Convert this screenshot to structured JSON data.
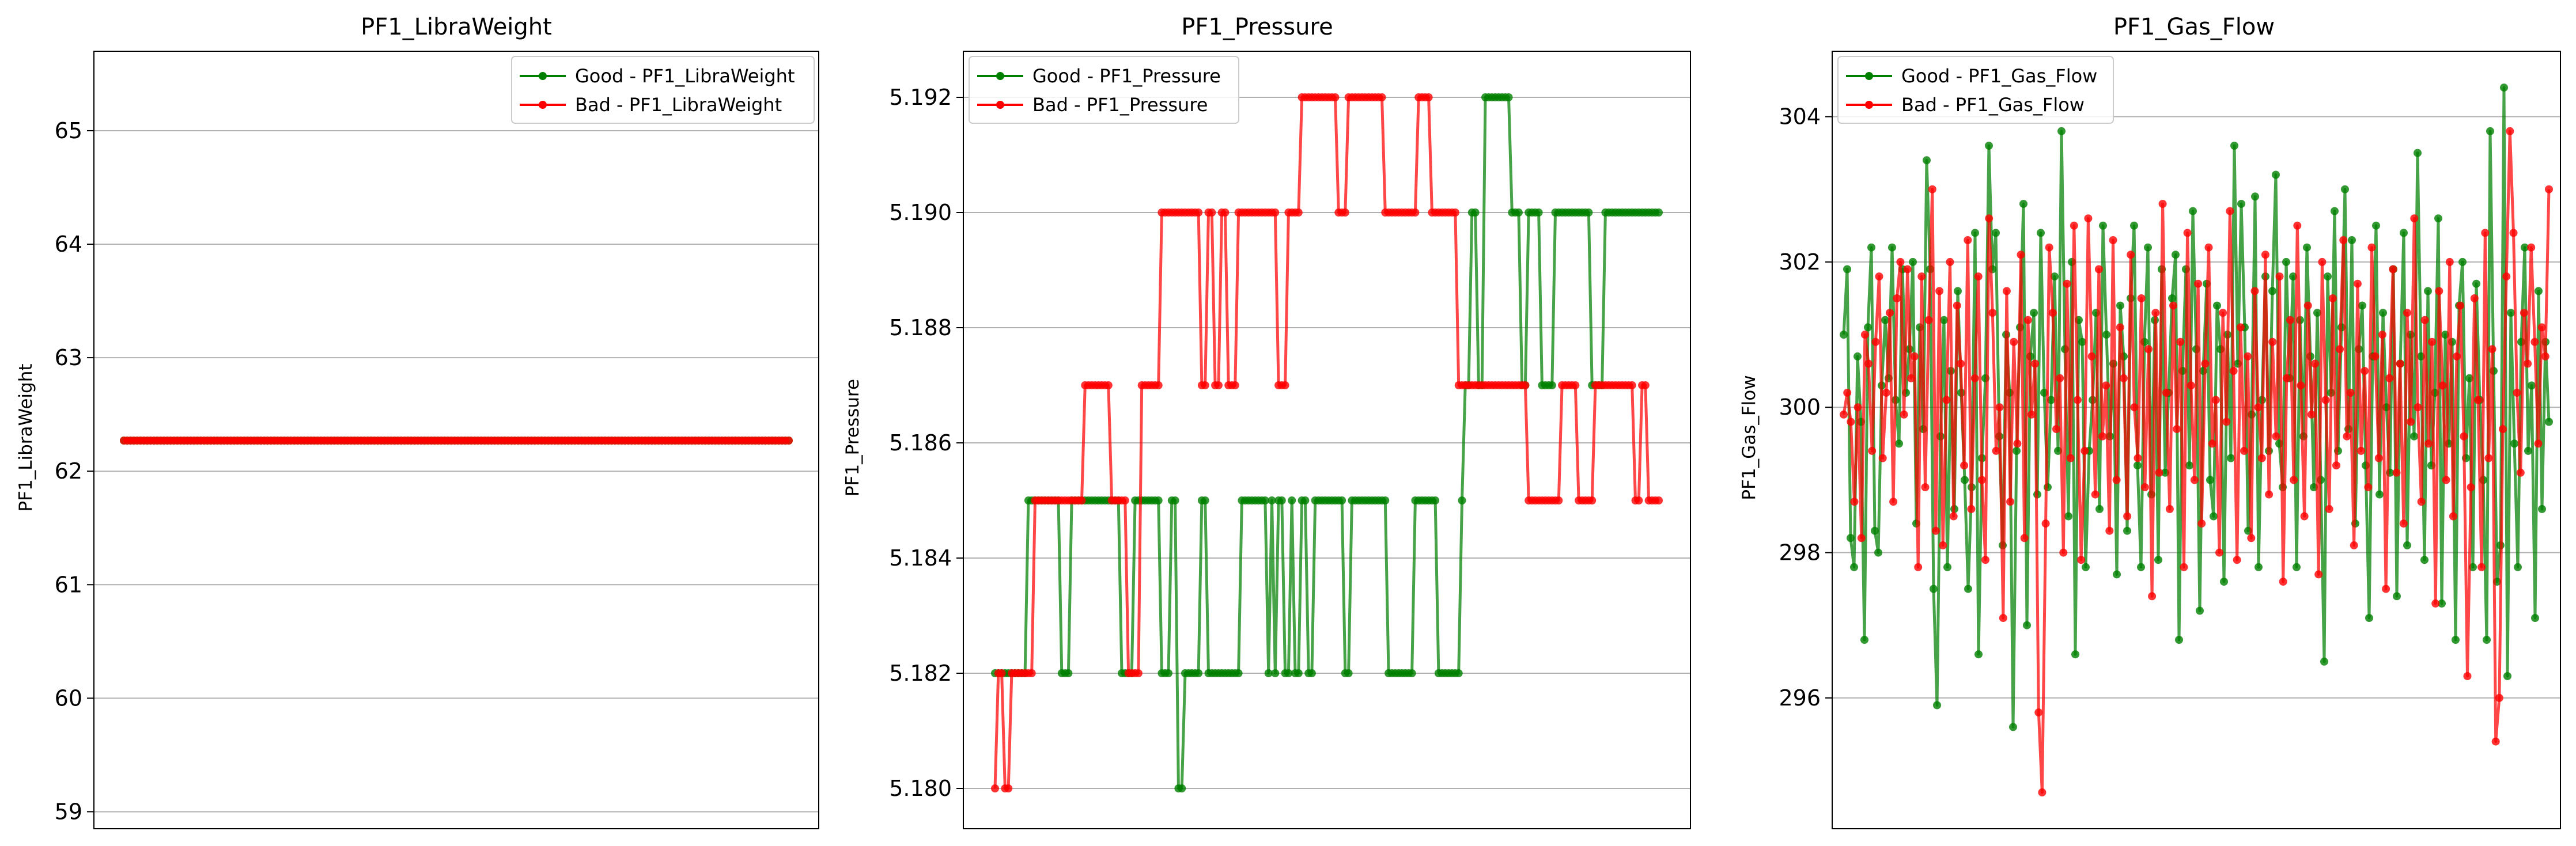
{
  "chart_data": [
    {
      "type": "line",
      "title": "PF1_LibraWeight",
      "xlabel": "",
      "ylabel": "PF1_LibraWeight",
      "ylim": [
        58.85,
        65.7
      ],
      "yticks": [
        59,
        60,
        61,
        62,
        63,
        64,
        65
      ],
      "ytick_labels": [
        "59",
        "60",
        "61",
        "62",
        "63",
        "64",
        "65"
      ],
      "x_visible": false,
      "grid": "horizontal",
      "legend": "upper right",
      "series": [
        {
          "name": "Good - PF1_LibraWeight",
          "color": "#008000",
          "x_range": [
            0,
            199
          ],
          "constant": 62.27
        },
        {
          "name": "Bad - PF1_LibraWeight",
          "color": "#ff0000",
          "x_range": [
            0,
            199
          ],
          "constant": 62.27
        }
      ]
    },
    {
      "type": "line",
      "title": "PF1_Pressure",
      "xlabel": "",
      "ylabel": "PF1_Pressure",
      "ylim": [
        5.1793,
        5.1928
      ],
      "yticks": [
        5.18,
        5.182,
        5.184,
        5.186,
        5.188,
        5.19,
        5.192
      ],
      "ytick_labels": [
        "5.180",
        "5.182",
        "5.184",
        "5.186",
        "5.188",
        "5.190",
        "5.192"
      ],
      "x_visible": false,
      "grid": "horizontal",
      "legend": "upper left",
      "series": [
        {
          "name": "Good - PF1_Pressure",
          "color": "#008000",
          "x_range": [
            0,
            199
          ],
          "steps": [
            [
              0,
              5.182
            ],
            [
              10,
              5.185
            ],
            [
              20,
              5.182
            ],
            [
              23,
              5.185
            ],
            [
              38,
              5.182
            ],
            [
              42,
              5.185
            ],
            [
              50,
              5.182
            ],
            [
              53,
              5.185
            ],
            [
              55,
              5.18
            ],
            [
              57,
              5.182
            ],
            [
              62,
              5.185
            ],
            [
              64,
              5.182
            ],
            [
              74,
              5.185
            ],
            [
              82,
              5.182
            ],
            [
              83,
              5.185
            ],
            [
              84,
              5.182
            ],
            [
              85,
              5.185
            ],
            [
              87,
              5.182
            ],
            [
              89,
              5.185
            ],
            [
              90,
              5.182
            ],
            [
              92,
              5.185
            ],
            [
              94,
              5.182
            ],
            [
              96,
              5.185
            ],
            [
              105,
              5.182
            ],
            [
              107,
              5.185
            ],
            [
              118,
              5.182
            ],
            [
              126,
              5.185
            ],
            [
              133,
              5.182
            ],
            [
              140,
              5.185
            ],
            [
              141,
              5.187
            ],
            [
              143,
              5.19
            ],
            [
              145,
              5.187
            ],
            [
              147,
              5.192
            ],
            [
              155,
              5.19
            ],
            [
              158,
              5.187
            ],
            [
              160,
              5.19
            ],
            [
              164,
              5.187
            ],
            [
              168,
              5.19
            ],
            [
              179,
              5.187
            ],
            [
              183,
              5.19
            ],
            [
              199,
              5.19
            ]
          ]
        },
        {
          "name": "Bad - PF1_Pressure",
          "color": "#ff0000",
          "x_range": [
            0,
            199
          ],
          "steps": [
            [
              0,
              5.18
            ],
            [
              1,
              5.182
            ],
            [
              3,
              5.18
            ],
            [
              5,
              5.182
            ],
            [
              12,
              5.185
            ],
            [
              27,
              5.187
            ],
            [
              35,
              5.185
            ],
            [
              40,
              5.182
            ],
            [
              44,
              5.187
            ],
            [
              50,
              5.19
            ],
            [
              62,
              5.187
            ],
            [
              64,
              5.19
            ],
            [
              66,
              5.187
            ],
            [
              68,
              5.19
            ],
            [
              70,
              5.187
            ],
            [
              73,
              5.19
            ],
            [
              85,
              5.187
            ],
            [
              88,
              5.19
            ],
            [
              92,
              5.192
            ],
            [
              103,
              5.19
            ],
            [
              106,
              5.192
            ],
            [
              117,
              5.19
            ],
            [
              127,
              5.192
            ],
            [
              131,
              5.19
            ],
            [
              139,
              5.187
            ],
            [
              160,
              5.185
            ],
            [
              170,
              5.187
            ],
            [
              175,
              5.185
            ],
            [
              180,
              5.187
            ],
            [
              192,
              5.185
            ],
            [
              194,
              5.187
            ],
            [
              196,
              5.185
            ],
            [
              199,
              5.185
            ]
          ]
        }
      ]
    },
    {
      "type": "line",
      "title": "PF1_Gas_Flow",
      "xlabel": "",
      "ylabel": "PF1_Gas_Flow",
      "ylim": [
        294.2,
        304.9
      ],
      "yticks": [
        296,
        298,
        300,
        302,
        304
      ],
      "ytick_labels": [
        "296",
        "298",
        "300",
        "302",
        "304"
      ],
      "x_visible": false,
      "grid": "horizontal",
      "legend": "upper left",
      "series": [
        {
          "name": "Good - PF1_Gas_Flow",
          "color": "#008000",
          "x_range": [
            0,
            199
          ],
          "values": [
            301.0,
            301.9,
            298.2,
            297.8,
            300.7,
            299.8,
            296.8,
            301.1,
            302.2,
            298.3,
            298.0,
            300.3,
            301.2,
            300.4,
            302.2,
            300.1,
            299.5,
            301.9,
            300.2,
            300.8,
            302.0,
            298.4,
            301.1,
            299.7,
            303.4,
            301.9,
            297.5,
            295.9,
            299.6,
            301.2,
            297.8,
            300.5,
            298.6,
            301.6,
            300.2,
            299.0,
            297.5,
            298.9,
            302.4,
            296.6,
            299.3,
            300.4,
            303.6,
            301.9,
            302.4,
            299.6,
            298.1,
            301.0,
            300.2,
            295.6,
            299.4,
            301.1,
            302.8,
            297.0,
            300.7,
            301.3,
            298.8,
            302.4,
            300.2,
            298.9,
            300.1,
            301.8,
            299.4,
            303.8,
            300.8,
            298.5,
            302.0,
            296.6,
            301.2,
            300.9,
            297.8,
            299.4,
            300.1,
            301.3,
            298.6,
            302.5,
            301.0,
            299.6,
            300.6,
            297.7,
            301.4,
            300.7,
            298.3,
            301.5,
            302.5,
            299.2,
            297.8,
            300.9,
            302.2,
            298.8,
            301.2,
            297.9,
            301.9,
            299.1,
            300.2,
            301.5,
            302.1,
            296.8,
            300.5,
            301.9,
            299.2,
            302.7,
            300.8,
            297.2,
            300.5,
            301.7,
            299.0,
            298.5,
            301.4,
            300.8,
            297.6,
            301.0,
            299.3,
            303.6,
            300.6,
            302.8,
            301.1,
            298.3,
            299.9,
            302.9,
            297.8,
            300.1,
            301.8,
            299.4,
            301.6,
            303.2,
            299.5,
            298.9,
            302.0,
            300.4,
            301.8,
            297.8,
            301.2,
            299.6,
            302.2,
            300.7,
            298.9,
            301.3,
            299.0,
            296.5,
            301.8,
            300.2,
            302.7,
            299.4,
            301.1,
            303.0,
            299.7,
            302.3,
            298.4,
            300.8,
            301.4,
            299.2,
            297.1,
            300.7,
            302.5,
            298.8,
            301.3,
            300.0,
            299.1,
            301.9,
            297.4,
            300.6,
            302.4,
            298.1,
            301.0,
            299.6,
            303.5,
            300.7,
            297.9,
            301.6,
            299.2,
            300.2,
            302.6,
            297.3,
            301.0,
            299.5,
            300.9,
            296.8,
            301.4,
            302.0,
            299.3,
            300.4,
            297.8,
            301.7,
            300.1,
            299.0,
            296.8,
            303.8,
            300.5,
            297.6,
            298.1,
            304.4,
            296.3,
            301.3,
            299.5,
            297.8,
            300.9,
            302.2,
            299.4,
            300.3,
            297.1,
            301.6,
            298.6,
            300.9,
            299.8
          ]
        },
        {
          "name": "Bad - PF1_Gas_Flow",
          "color": "#ff0000",
          "x_range": [
            0,
            199
          ],
          "values": [
            299.9,
            300.2,
            299.8,
            298.7,
            300.0,
            298.2,
            301.0,
            300.6,
            299.4,
            300.9,
            301.8,
            299.3,
            300.2,
            301.3,
            298.7,
            301.5,
            302.0,
            299.9,
            301.9,
            300.4,
            300.7,
            297.8,
            301.8,
            298.9,
            301.2,
            303.0,
            298.3,
            301.6,
            298.1,
            300.1,
            302.0,
            298.5,
            301.4,
            300.6,
            299.2,
            302.3,
            298.6,
            300.4,
            301.8,
            299.0,
            297.9,
            302.6,
            301.3,
            299.4,
            300.0,
            297.1,
            301.6,
            298.7,
            300.9,
            299.5,
            302.1,
            298.2,
            301.2,
            299.9,
            300.6,
            295.8,
            294.7,
            298.4,
            302.2,
            301.3,
            299.7,
            300.4,
            298.0,
            301.7,
            299.3,
            302.5,
            300.1,
            297.9,
            299.4,
            302.6,
            300.7,
            298.8,
            301.9,
            299.6,
            300.3,
            298.3,
            302.3,
            299.0,
            301.1,
            300.4,
            298.5,
            302.1,
            300.0,
            299.3,
            301.5,
            298.9,
            300.8,
            297.4,
            301.3,
            299.1,
            302.8,
            300.2,
            298.6,
            301.4,
            299.7,
            300.9,
            297.8,
            302.4,
            300.3,
            299.0,
            301.7,
            298.4,
            300.6,
            302.2,
            299.5,
            300.1,
            298.0,
            301.3,
            299.8,
            302.7,
            300.5,
            297.9,
            301.1,
            299.4,
            300.7,
            298.2,
            301.6,
            300.0,
            299.3,
            302.1,
            298.8,
            300.9,
            299.6,
            301.8,
            297.6,
            300.4,
            301.2,
            299.0,
            302.5,
            300.3,
            298.5,
            301.4,
            299.9,
            300.6,
            297.7,
            302.0,
            300.1,
            298.6,
            301.5,
            299.2,
            300.8,
            302.3,
            299.6,
            300.2,
            298.1,
            301.7,
            299.4,
            300.5,
            298.9,
            302.2,
            300.7,
            299.3,
            301.0,
            297.5,
            300.4,
            301.9,
            299.1,
            300.6,
            298.4,
            301.3,
            299.8,
            302.6,
            300.0,
            298.7,
            301.2,
            299.5,
            300.9,
            297.3,
            301.6,
            300.3,
            299.0,
            302.0,
            298.5,
            300.7,
            301.4,
            299.6,
            296.3,
            298.9,
            301.5,
            300.1,
            297.8,
            302.4,
            299.3,
            300.8,
            295.4,
            296.0,
            299.7,
            301.8,
            303.8,
            302.4,
            300.2,
            299.1,
            301.3,
            300.6,
            302.2,
            300.9,
            299.5,
            301.1,
            300.7,
            303.0
          ]
        }
      ]
    }
  ]
}
